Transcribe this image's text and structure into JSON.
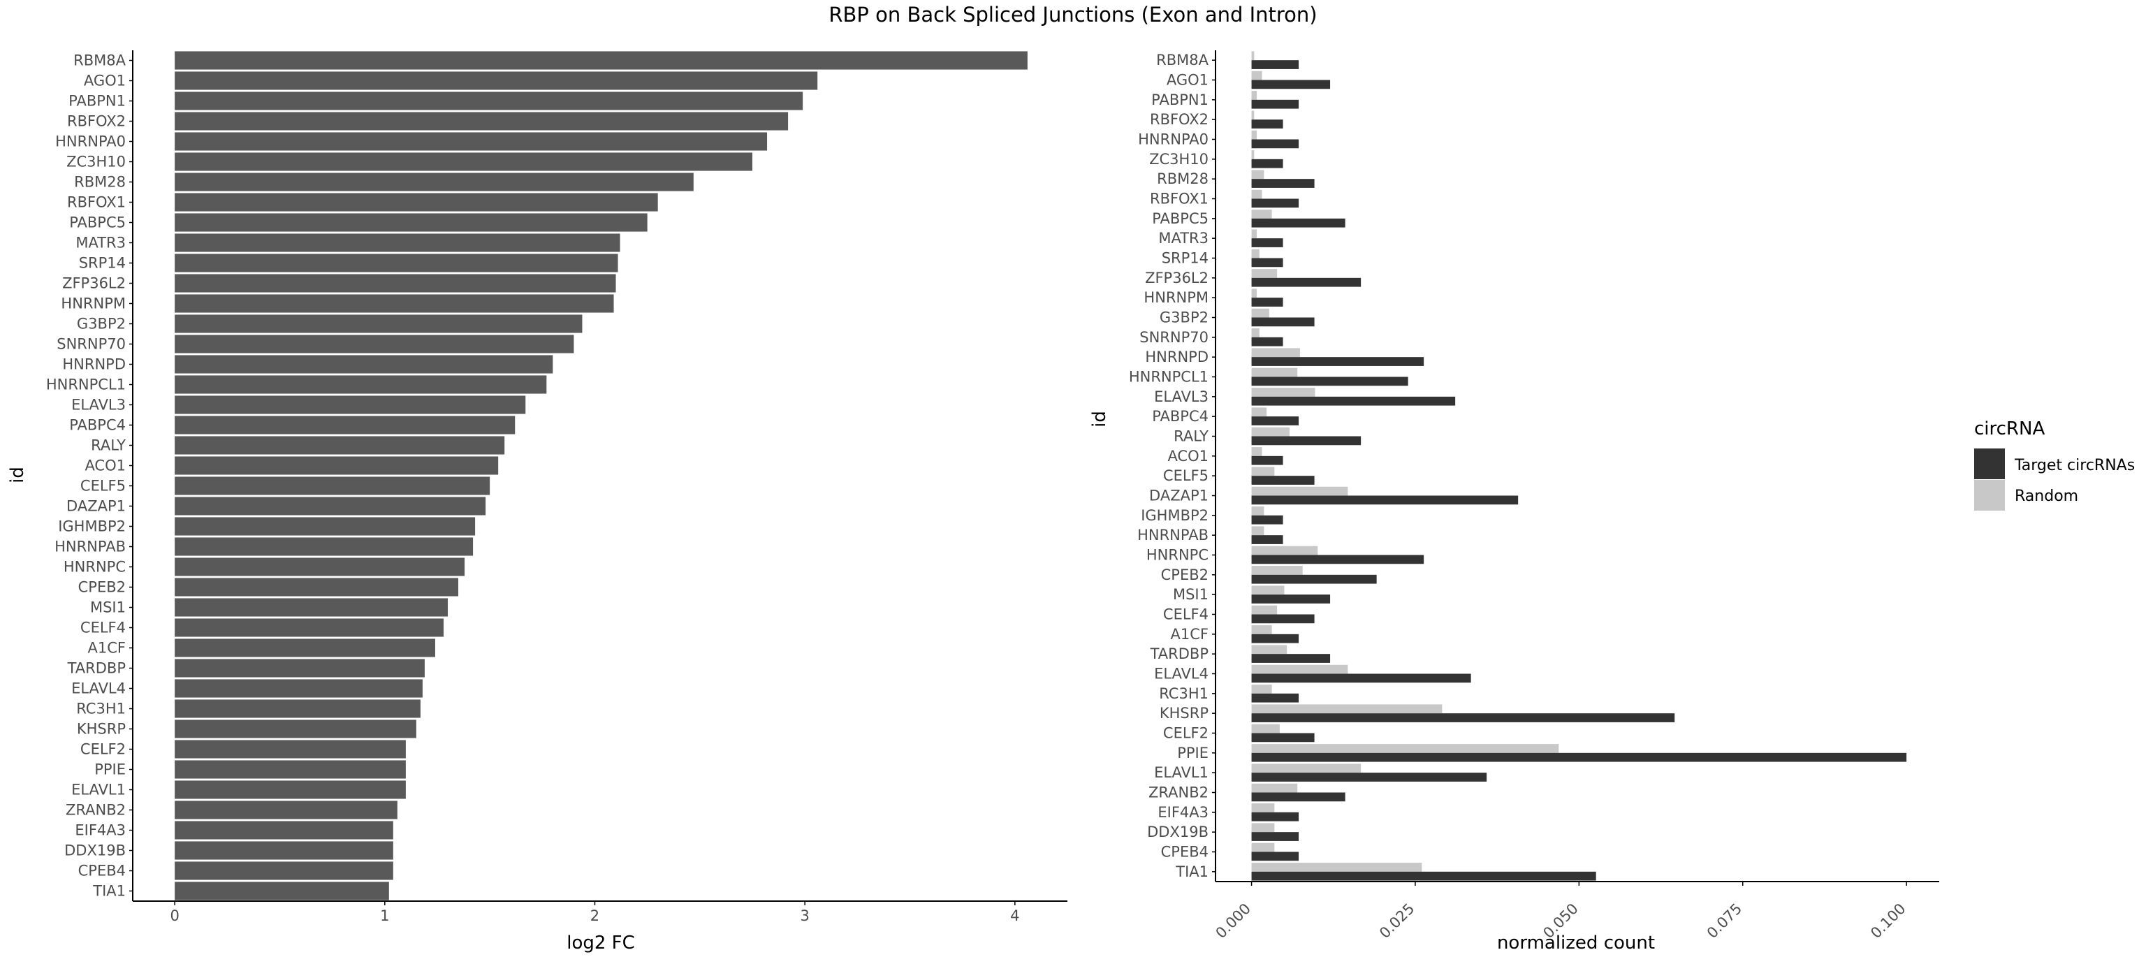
{
  "title": "RBP on Back Spliced Junctions (Exon and Intron)",
  "colors": {
    "bar_left": "#595959",
    "target": "#333333",
    "random": "#c8c8c8",
    "axis": "#000000",
    "text": "#4d4d4d"
  },
  "chart_data": [
    {
      "type": "bar",
      "orientation": "horizontal",
      "title": "RBP on Back Spliced Junctions (Exon and Intron)",
      "xlabel": "log2 FC",
      "ylabel": "id",
      "xlim": [
        -0.2,
        4.25
      ],
      "xticks": [
        0,
        1,
        2,
        3,
        4
      ],
      "xtick_labels": [
        "0",
        "1",
        "2",
        "3",
        "4"
      ],
      "grid": false,
      "categories": [
        "RBM8A",
        "AGO1",
        "PABPN1",
        "RBFOX2",
        "HNRNPA0",
        "ZC3H10",
        "RBM28",
        "RBFOX1",
        "PABPC5",
        "MATR3",
        "SRP14",
        "ZFP36L2",
        "HNRNPM",
        "G3BP2",
        "SNRNP70",
        "HNRNPD",
        "HNRNPCL1",
        "ELAVL3",
        "PABPC4",
        "RALY",
        "ACO1",
        "CELF5",
        "DAZAP1",
        "IGHMBP2",
        "HNRNPAB",
        "HNRNPC",
        "CPEB2",
        "MSI1",
        "CELF4",
        "A1CF",
        "TARDBP",
        "ELAVL4",
        "RC3H1",
        "KHSRP",
        "CELF2",
        "PPIE",
        "ELAVL1",
        "ZRANB2",
        "EIF4A3",
        "DDX19B",
        "CPEB4",
        "TIA1"
      ],
      "values": [
        4.06,
        3.06,
        2.99,
        2.92,
        2.82,
        2.75,
        2.47,
        2.3,
        2.25,
        2.12,
        2.11,
        2.1,
        2.09,
        1.94,
        1.9,
        1.8,
        1.77,
        1.67,
        1.62,
        1.57,
        1.54,
        1.5,
        1.48,
        1.43,
        1.42,
        1.38,
        1.35,
        1.3,
        1.28,
        1.24,
        1.19,
        1.18,
        1.17,
        1.15,
        1.1,
        1.1,
        1.1,
        1.06,
        1.04,
        1.04,
        1.04,
        1.02
      ]
    },
    {
      "type": "bar",
      "orientation": "horizontal",
      "xlabel": "normalized count",
      "ylabel": "id",
      "xlim": [
        -0.0055,
        0.105
      ],
      "xticks": [
        0,
        0.025,
        0.05,
        0.075,
        0.1
      ],
      "xtick_labels": [
        "0.000",
        "0.025",
        "0.050",
        "0.075",
        "0.100"
      ],
      "grid": false,
      "legend": {
        "title": "circRNA",
        "position": "right"
      },
      "categories": [
        "RBM8A",
        "AGO1",
        "PABPN1",
        "RBFOX2",
        "HNRNPA0",
        "ZC3H10",
        "RBM28",
        "RBFOX1",
        "PABPC5",
        "MATR3",
        "SRP14",
        "ZFP36L2",
        "HNRNPM",
        "G3BP2",
        "SNRNP70",
        "HNRNPD",
        "HNRNPCL1",
        "ELAVL3",
        "PABPC4",
        "RALY",
        "ACO1",
        "CELF5",
        "DAZAP1",
        "IGHMBP2",
        "HNRNPAB",
        "HNRNPC",
        "CPEB2",
        "MSI1",
        "CELF4",
        "A1CF",
        "TARDBP",
        "ELAVL4",
        "RC3H1",
        "KHSRP",
        "CELF2",
        "PPIE",
        "ELAVL1",
        "ZRANB2",
        "EIF4A3",
        "DDX19B",
        "CPEB4",
        "TIA1"
      ],
      "series": [
        {
          "name": "Target circRNAs",
          "values": [
            0.0072,
            0.012,
            0.0072,
            0.0048,
            0.0072,
            0.0048,
            0.0096,
            0.0072,
            0.0143,
            0.0048,
            0.0048,
            0.0167,
            0.0048,
            0.0096,
            0.0048,
            0.0263,
            0.0239,
            0.0311,
            0.0072,
            0.0167,
            0.0048,
            0.0096,
            0.0407,
            0.0048,
            0.0048,
            0.0263,
            0.0191,
            0.012,
            0.0096,
            0.0072,
            0.012,
            0.0335,
            0.0072,
            0.0646,
            0.0096,
            0.1,
            0.0359,
            0.0143,
            0.0072,
            0.0072,
            0.0072,
            0.0526
          ]
        },
        {
          "name": "Random",
          "values": [
            0.0004,
            0.0016,
            0.0008,
            0.0004,
            0.0008,
            0.0004,
            0.0019,
            0.0016,
            0.0031,
            0.0008,
            0.0012,
            0.0039,
            0.0008,
            0.0027,
            0.0012,
            0.0074,
            0.007,
            0.0097,
            0.0023,
            0.0058,
            0.0016,
            0.0035,
            0.0147,
            0.0019,
            0.0019,
            0.0101,
            0.0078,
            0.005,
            0.0039,
            0.0031,
            0.0054,
            0.0147,
            0.0031,
            0.0291,
            0.0043,
            0.0469,
            0.0167,
            0.007,
            0.0035,
            0.0035,
            0.0035,
            0.026
          ]
        }
      ]
    }
  ]
}
